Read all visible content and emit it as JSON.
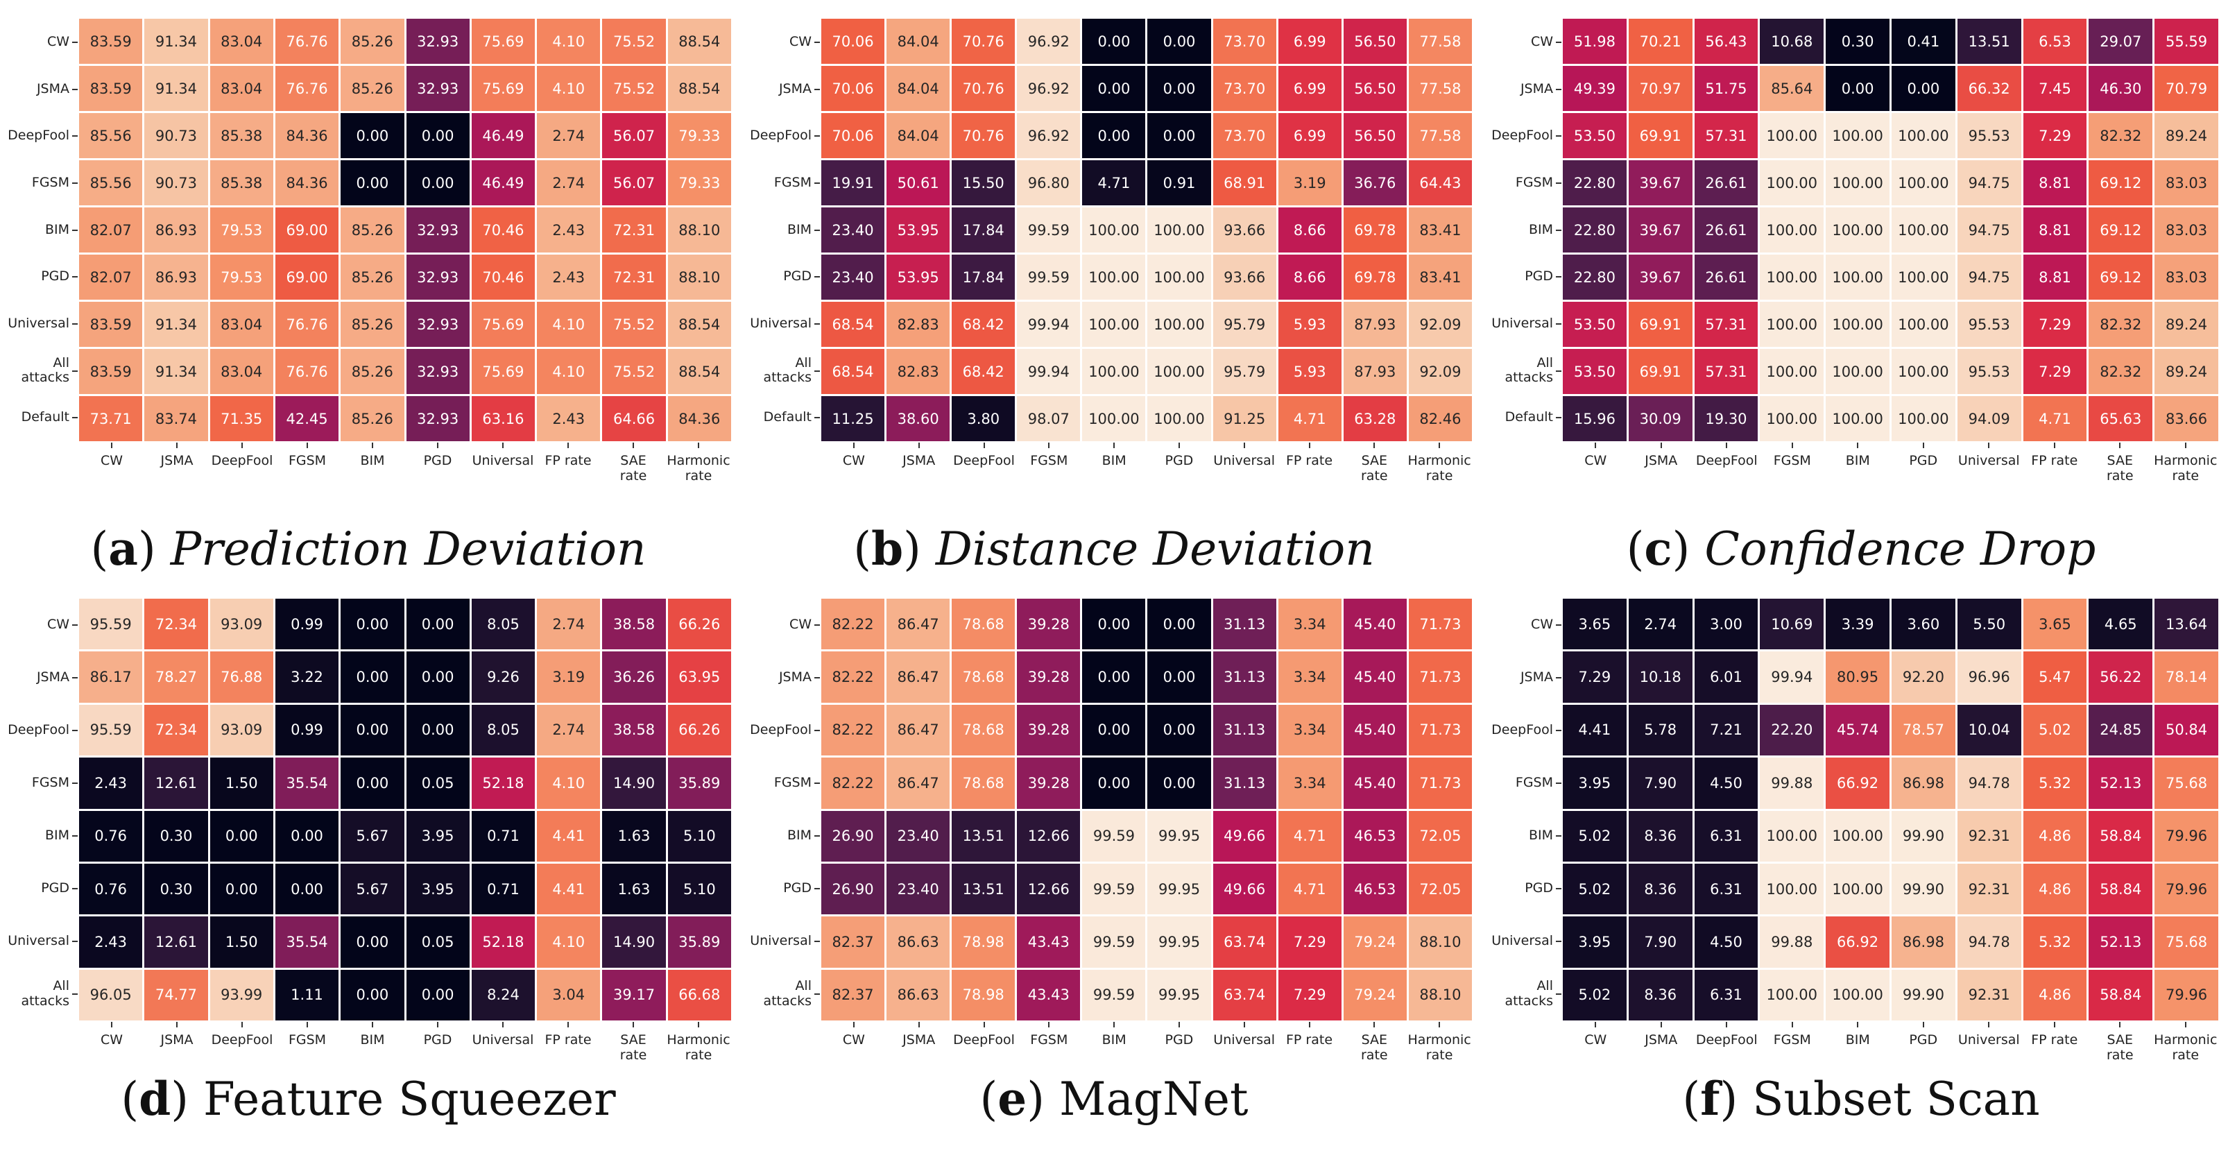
{
  "chart_data": [
    {
      "type": "heatmap",
      "label": "a",
      "title": "Prediction Deviation",
      "rows": [
        "CW",
        "JSMA",
        "DeepFool",
        "FGSM",
        "BIM",
        "PGD",
        "Universal",
        "All\nattacks",
        "Default"
      ],
      "cols": [
        "CW",
        "JSMA",
        "DeepFool",
        "FGSM",
        "BIM",
        "PGD",
        "Universal",
        "FP rate",
        "SAE\nrate",
        "Harmonic\nrate"
      ],
      "values": [
        [
          83.59,
          91.34,
          83.04,
          76.76,
          85.26,
          32.93,
          75.69,
          4.1,
          75.52,
          88.54
        ],
        [
          83.59,
          91.34,
          83.04,
          76.76,
          85.26,
          32.93,
          75.69,
          4.1,
          75.52,
          88.54
        ],
        [
          85.56,
          90.73,
          85.38,
          84.36,
          0.0,
          0.0,
          46.49,
          2.74,
          56.07,
          79.33
        ],
        [
          85.56,
          90.73,
          85.38,
          84.36,
          0.0,
          0.0,
          46.49,
          2.74,
          56.07,
          79.33
        ],
        [
          82.07,
          86.93,
          79.53,
          69.0,
          85.26,
          32.93,
          70.46,
          2.43,
          72.31,
          88.1
        ],
        [
          82.07,
          86.93,
          79.53,
          69.0,
          85.26,
          32.93,
          70.46,
          2.43,
          72.31,
          88.1
        ],
        [
          83.59,
          91.34,
          83.04,
          76.76,
          85.26,
          32.93,
          75.69,
          4.1,
          75.52,
          88.54
        ],
        [
          83.59,
          91.34,
          83.04,
          76.76,
          85.26,
          32.93,
          75.69,
          4.1,
          75.52,
          88.54
        ],
        [
          73.71,
          83.74,
          71.35,
          42.45,
          85.26,
          32.93,
          63.16,
          2.43,
          64.66,
          84.36
        ]
      ]
    },
    {
      "type": "heatmap",
      "label": "b",
      "title": "Distance Deviation",
      "rows": [
        "CW",
        "JSMA",
        "DeepFool",
        "FGSM",
        "BIM",
        "PGD",
        "Universal",
        "All\nattacks",
        "Default"
      ],
      "cols": [
        "CW",
        "JSMA",
        "DeepFool",
        "FGSM",
        "BIM",
        "PGD",
        "Universal",
        "FP rate",
        "SAE\nrate",
        "Harmonic\nrate"
      ],
      "values": [
        [
          70.06,
          84.04,
          70.76,
          96.92,
          0.0,
          0.0,
          73.7,
          6.99,
          56.5,
          77.58
        ],
        [
          70.06,
          84.04,
          70.76,
          96.92,
          0.0,
          0.0,
          73.7,
          6.99,
          56.5,
          77.58
        ],
        [
          70.06,
          84.04,
          70.76,
          96.92,
          0.0,
          0.0,
          73.7,
          6.99,
          56.5,
          77.58
        ],
        [
          19.91,
          50.61,
          15.5,
          96.8,
          4.71,
          0.91,
          68.91,
          3.19,
          36.76,
          64.43
        ],
        [
          23.4,
          53.95,
          17.84,
          99.59,
          100.0,
          100.0,
          93.66,
          8.66,
          69.78,
          83.41
        ],
        [
          23.4,
          53.95,
          17.84,
          99.59,
          100.0,
          100.0,
          93.66,
          8.66,
          69.78,
          83.41
        ],
        [
          68.54,
          82.83,
          68.42,
          99.94,
          100.0,
          100.0,
          95.79,
          5.93,
          87.93,
          92.09
        ],
        [
          68.54,
          82.83,
          68.42,
          99.94,
          100.0,
          100.0,
          95.79,
          5.93,
          87.93,
          92.09
        ],
        [
          11.25,
          38.6,
          3.8,
          98.07,
          100.0,
          100.0,
          91.25,
          4.71,
          63.28,
          82.46
        ]
      ]
    },
    {
      "type": "heatmap",
      "label": "c",
      "title": "Confidence Drop",
      "rows": [
        "CW",
        "JSMA",
        "DeepFool",
        "FGSM",
        "BIM",
        "PGD",
        "Universal",
        "All\nattacks",
        "Default"
      ],
      "cols": [
        "CW",
        "JSMA",
        "DeepFool",
        "FGSM",
        "BIM",
        "PGD",
        "Universal",
        "FP rate",
        "SAE\nrate",
        "Harmonic\nrate"
      ],
      "values": [
        [
          51.98,
          70.21,
          56.43,
          10.68,
          0.3,
          0.41,
          13.51,
          6.53,
          29.07,
          55.59
        ],
        [
          49.39,
          70.97,
          51.75,
          85.64,
          0.0,
          0.0,
          66.32,
          7.45,
          46.3,
          70.79
        ],
        [
          53.5,
          69.91,
          57.31,
          100.0,
          100.0,
          100.0,
          95.53,
          7.29,
          82.32,
          89.24
        ],
        [
          22.8,
          39.67,
          26.61,
          100.0,
          100.0,
          100.0,
          94.75,
          8.81,
          69.12,
          83.03
        ],
        [
          22.8,
          39.67,
          26.61,
          100.0,
          100.0,
          100.0,
          94.75,
          8.81,
          69.12,
          83.03
        ],
        [
          22.8,
          39.67,
          26.61,
          100.0,
          100.0,
          100.0,
          94.75,
          8.81,
          69.12,
          83.03
        ],
        [
          53.5,
          69.91,
          57.31,
          100.0,
          100.0,
          100.0,
          95.53,
          7.29,
          82.32,
          89.24
        ],
        [
          53.5,
          69.91,
          57.31,
          100.0,
          100.0,
          100.0,
          95.53,
          7.29,
          82.32,
          89.24
        ],
        [
          15.96,
          30.09,
          19.3,
          100.0,
          100.0,
          100.0,
          94.09,
          4.71,
          65.63,
          83.66
        ]
      ]
    },
    {
      "type": "heatmap",
      "label": "d",
      "title": "Feature Squeezer",
      "rows": [
        "CW",
        "JSMA",
        "DeepFool",
        "FGSM",
        "BIM",
        "PGD",
        "Universal",
        "All\nattacks"
      ],
      "cols": [
        "CW",
        "JSMA",
        "DeepFool",
        "FGSM",
        "BIM",
        "PGD",
        "Universal",
        "FP rate",
        "SAE\nrate",
        "Harmonic\nrate"
      ],
      "values": [
        [
          95.59,
          72.34,
          93.09,
          0.99,
          0.0,
          0.0,
          8.05,
          2.74,
          38.58,
          66.26
        ],
        [
          86.17,
          78.27,
          76.88,
          3.22,
          0.0,
          0.0,
          9.26,
          3.19,
          36.26,
          63.95
        ],
        [
          95.59,
          72.34,
          93.09,
          0.99,
          0.0,
          0.0,
          8.05,
          2.74,
          38.58,
          66.26
        ],
        [
          2.43,
          12.61,
          1.5,
          35.54,
          0.0,
          0.05,
          52.18,
          4.1,
          14.9,
          35.89
        ],
        [
          0.76,
          0.3,
          0.0,
          0.0,
          5.67,
          3.95,
          0.71,
          4.41,
          1.63,
          5.1
        ],
        [
          0.76,
          0.3,
          0.0,
          0.0,
          5.67,
          3.95,
          0.71,
          4.41,
          1.63,
          5.1
        ],
        [
          2.43,
          12.61,
          1.5,
          35.54,
          0.0,
          0.05,
          52.18,
          4.1,
          14.9,
          35.89
        ],
        [
          96.05,
          74.77,
          93.99,
          1.11,
          0.0,
          0.0,
          8.24,
          3.04,
          39.17,
          66.68
        ]
      ]
    },
    {
      "type": "heatmap",
      "label": "e",
      "title": "MagNet",
      "rows": [
        "CW",
        "JSMA",
        "DeepFool",
        "FGSM",
        "BIM",
        "PGD",
        "Universal",
        "All\nattacks"
      ],
      "cols": [
        "CW",
        "JSMA",
        "DeepFool",
        "FGSM",
        "BIM",
        "PGD",
        "Universal",
        "FP rate",
        "SAE\nrate",
        "Harmonic\nrate"
      ],
      "values": [
        [
          82.22,
          86.47,
          78.68,
          39.28,
          0.0,
          0.0,
          31.13,
          3.34,
          45.4,
          71.73
        ],
        [
          82.22,
          86.47,
          78.68,
          39.28,
          0.0,
          0.0,
          31.13,
          3.34,
          45.4,
          71.73
        ],
        [
          82.22,
          86.47,
          78.68,
          39.28,
          0.0,
          0.0,
          31.13,
          3.34,
          45.4,
          71.73
        ],
        [
          82.22,
          86.47,
          78.68,
          39.28,
          0.0,
          0.0,
          31.13,
          3.34,
          45.4,
          71.73
        ],
        [
          26.9,
          23.4,
          13.51,
          12.66,
          99.59,
          99.95,
          49.66,
          4.71,
          46.53,
          72.05
        ],
        [
          26.9,
          23.4,
          13.51,
          12.66,
          99.59,
          99.95,
          49.66,
          4.71,
          46.53,
          72.05
        ],
        [
          82.37,
          86.63,
          78.98,
          43.43,
          99.59,
          99.95,
          63.74,
          7.29,
          79.24,
          88.1
        ],
        [
          82.37,
          86.63,
          78.98,
          43.43,
          99.59,
          99.95,
          63.74,
          7.29,
          79.24,
          88.1
        ]
      ]
    },
    {
      "type": "heatmap",
      "label": "f",
      "title": "Subset Scan",
      "rows": [
        "CW",
        "JSMA",
        "DeepFool",
        "FGSM",
        "BIM",
        "PGD",
        "Universal",
        "All\nattacks"
      ],
      "cols": [
        "CW",
        "JSMA",
        "DeepFool",
        "FGSM",
        "BIM",
        "PGD",
        "Universal",
        "FP rate",
        "SAE\nrate",
        "Harmonic\nrate"
      ],
      "values": [
        [
          3.65,
          2.74,
          3.0,
          10.69,
          3.39,
          3.6,
          5.5,
          3.65,
          4.65,
          13.64
        ],
        [
          7.29,
          10.18,
          6.01,
          99.94,
          80.95,
          92.2,
          96.96,
          5.47,
          56.22,
          78.14
        ],
        [
          4.41,
          5.78,
          7.21,
          22.2,
          45.74,
          78.57,
          10.04,
          5.02,
          24.85,
          50.84
        ],
        [
          3.95,
          7.9,
          4.5,
          99.88,
          66.92,
          86.98,
          94.78,
          5.32,
          52.13,
          75.68
        ],
        [
          5.02,
          8.36,
          6.31,
          100.0,
          100.0,
          99.9,
          92.31,
          4.86,
          58.84,
          79.96
        ],
        [
          5.02,
          8.36,
          6.31,
          100.0,
          100.0,
          99.9,
          92.31,
          4.86,
          58.84,
          79.96
        ],
        [
          3.95,
          7.9,
          4.5,
          99.88,
          66.92,
          86.98,
          94.78,
          5.32,
          52.13,
          75.68
        ],
        [
          5.02,
          8.36,
          6.31,
          100.0,
          100.0,
          99.9,
          92.31,
          4.86,
          58.84,
          79.96
        ]
      ]
    }
  ],
  "colormap": [
    "#03051a",
    "#221331",
    "#451c47",
    "#6a1f56",
    "#921c5b",
    "#b91657",
    "#dd2c45",
    "#f06043",
    "#f5936a",
    "#f6c19f",
    "#faebdd"
  ]
}
